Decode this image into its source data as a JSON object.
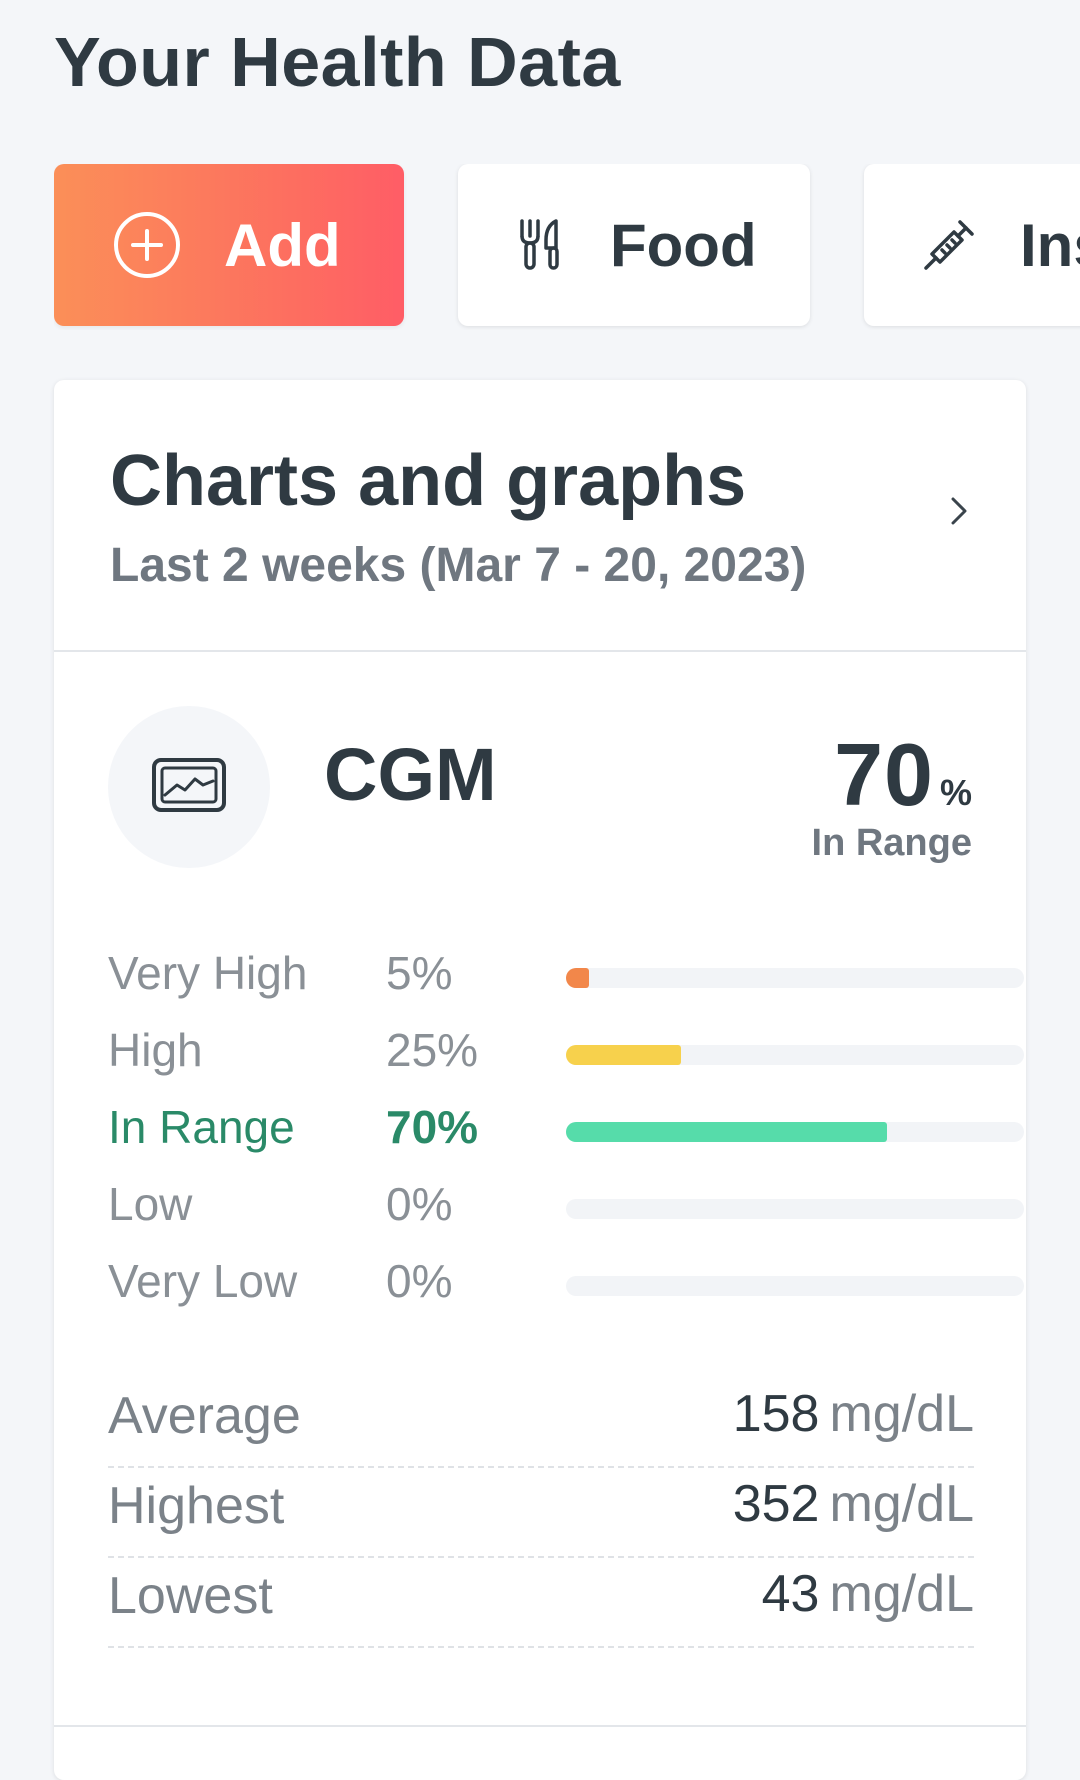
{
  "header": {
    "title": "Your Health Data"
  },
  "actions": {
    "add_label": "Add",
    "food_label": "Food",
    "insulin_label": "Ins"
  },
  "card": {
    "title": "Charts and graphs",
    "subtitle": "Last 2 weeks (Mar 7 - 20, 2023)"
  },
  "cgm": {
    "title": "CGM",
    "in_range_value": "70",
    "in_range_unit": "%",
    "in_range_label": "In Range"
  },
  "ranges": [
    {
      "label": "Very High",
      "percent_text": "5%",
      "percent": 5,
      "color": "#f2874a"
    },
    {
      "label": "High",
      "percent_text": "25%",
      "percent": 25,
      "color": "#f7d14c"
    },
    {
      "label": "In Range",
      "percent_text": "70%",
      "percent": 70,
      "color": "#56dcaa"
    },
    {
      "label": "Low",
      "percent_text": "0%",
      "percent": 0,
      "color": "#f7d14c"
    },
    {
      "label": "Very Low",
      "percent_text": "0%",
      "percent": 0,
      "color": "#f2874a"
    }
  ],
  "stats": [
    {
      "label": "Average",
      "value": "158",
      "unit": "mg/dL"
    },
    {
      "label": "Highest",
      "value": "352",
      "unit": "mg/dL"
    },
    {
      "label": "Lowest",
      "value": "43",
      "unit": "mg/dL"
    }
  ],
  "colors": {
    "accent_gradient_start": "#fb8f58",
    "accent_gradient_end": "#ff5d66",
    "in_range_text": "#2a8a68",
    "very_high_bar": "#f2874a",
    "high_bar": "#f7d14c",
    "in_range_bar": "#56dcaa"
  },
  "icons": {
    "add": "plus-circle-icon",
    "food": "utensils-icon",
    "insulin": "syringe-icon",
    "cgm": "cgm-monitor-icon",
    "chevron": "chevron-right-icon"
  }
}
